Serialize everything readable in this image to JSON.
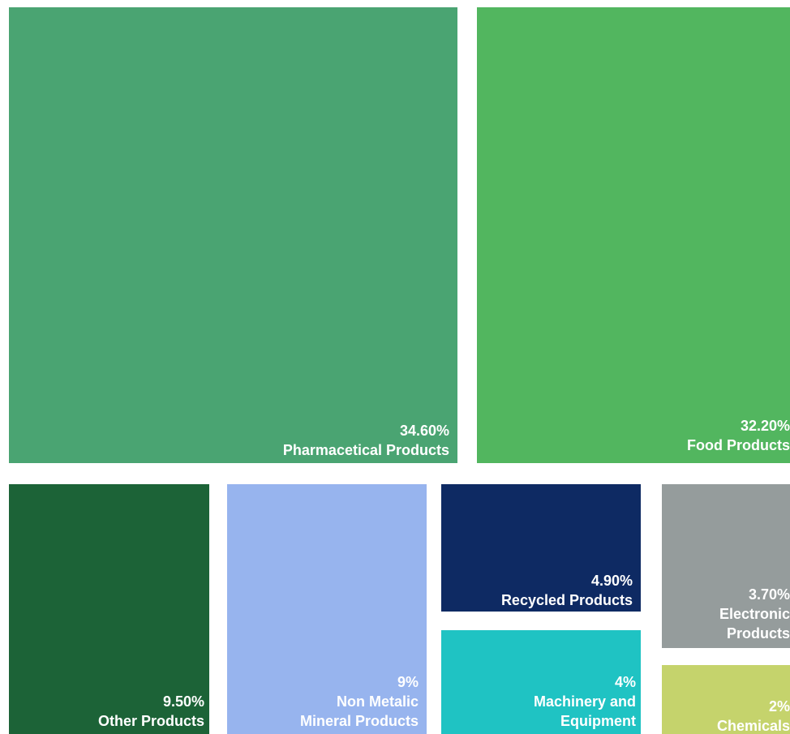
{
  "chart_data": {
    "type": "treemap",
    "title": "",
    "items": [
      {
        "label": "Pharmacetical Products",
        "value_label": "34.60%",
        "value": 34.6,
        "color": "#4aa472"
      },
      {
        "label": "Food Products",
        "value_label": "32.20%",
        "value": 32.2,
        "color": "#52b65f"
      },
      {
        "label": "Other Products",
        "value_label": "9.50%",
        "value": 9.5,
        "color": "#1c6337"
      },
      {
        "label": "Non Metalic\nMineral Products",
        "value_label": "9%",
        "value": 9.0,
        "color": "#97b4ee"
      },
      {
        "label": "Recycled Products",
        "value_label": "4.90%",
        "value": 4.9,
        "color": "#0e2a63"
      },
      {
        "label": "Machinery and\nEquipment",
        "value_label": "4%",
        "value": 4.0,
        "color": "#1fc3c3"
      },
      {
        "label": "Electronic\nProducts",
        "value_label": "3.70%",
        "value": 3.7,
        "color": "#959c9c"
      },
      {
        "label": "Chemicals",
        "value_label": "2%",
        "value": 2.0,
        "color": "#c5d36c"
      }
    ]
  }
}
